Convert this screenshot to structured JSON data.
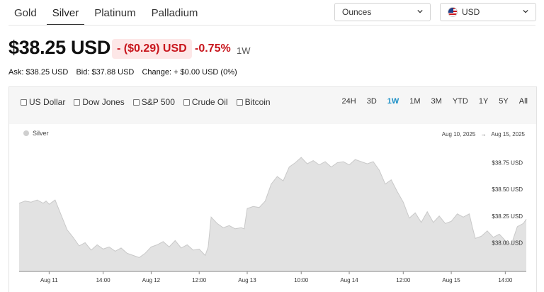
{
  "metal_tabs": [
    {
      "label": "Gold",
      "active": false
    },
    {
      "label": "Silver",
      "active": true
    },
    {
      "label": "Platinum",
      "active": false
    },
    {
      "label": "Palladium",
      "active": false
    }
  ],
  "units_select": {
    "value": "Ounces"
  },
  "currency_select": {
    "value": "USD",
    "flag_icon": "us-flag-icon"
  },
  "price": {
    "value": "$38.25 USD",
    "change": "- ($0.29) USD",
    "change_pct": "-0.75%",
    "period": "1W"
  },
  "quote": {
    "ask": "Ask: $38.25 USD",
    "bid": "Bid: $37.88 USD",
    "change": "Change: + $0.00 USD (0%)"
  },
  "compare": [
    "US Dollar",
    "Dow Jones",
    "S&P 500",
    "Crude Oil",
    "Bitcoin"
  ],
  "ranges": [
    {
      "label": "24H",
      "active": false
    },
    {
      "label": "3D",
      "active": false
    },
    {
      "label": "1W",
      "active": true
    },
    {
      "label": "1M",
      "active": false
    },
    {
      "label": "3M",
      "active": false
    },
    {
      "label": "YTD",
      "active": false
    },
    {
      "label": "1Y",
      "active": false
    },
    {
      "label": "5Y",
      "active": false
    },
    {
      "label": "All",
      "active": false
    }
  ],
  "chart_legend": "Silver",
  "date_range": {
    "from": "Aug 10, 2025",
    "arrow": "→",
    "to": "Aug 15, 2025"
  },
  "colors": {
    "negative": "#c8161d",
    "active_range": "#1a8fc6",
    "area_fill": "#e2e2e2",
    "line": "#c9c9c9"
  },
  "chart_data": {
    "type": "area",
    "series": [
      {
        "name": "Silver",
        "points": [
          [
            0,
            38.37
          ],
          [
            2,
            38.39
          ],
          [
            4,
            38.38
          ],
          [
            6,
            38.4
          ],
          [
            8,
            38.37
          ],
          [
            9,
            38.39
          ],
          [
            10,
            38.36
          ],
          [
            12,
            38.4
          ],
          [
            14,
            38.26
          ],
          [
            16,
            38.12
          ],
          [
            18,
            38.05
          ],
          [
            20,
            37.97
          ],
          [
            22,
            38.0
          ],
          [
            24,
            37.93
          ],
          [
            26,
            37.98
          ],
          [
            28,
            37.94
          ],
          [
            30,
            37.96
          ],
          [
            32,
            37.92
          ],
          [
            34,
            37.95
          ],
          [
            36,
            37.9
          ],
          [
            38,
            37.88
          ],
          [
            40,
            37.86
          ],
          [
            42,
            37.9
          ],
          [
            44,
            37.96
          ],
          [
            46,
            37.98
          ],
          [
            48,
            38.01
          ],
          [
            50,
            37.96
          ],
          [
            52,
            38.02
          ],
          [
            54,
            37.95
          ],
          [
            56,
            37.98
          ],
          [
            58,
            37.93
          ],
          [
            60,
            37.94
          ],
          [
            62,
            37.88
          ],
          [
            63,
            37.96
          ],
          [
            64,
            38.24
          ],
          [
            66,
            38.18
          ],
          [
            68,
            38.14
          ],
          [
            70,
            38.16
          ],
          [
            72,
            38.13
          ],
          [
            74,
            38.14
          ],
          [
            75,
            38.13
          ],
          [
            76,
            38.32
          ],
          [
            78,
            38.34
          ],
          [
            80,
            38.33
          ],
          [
            82,
            38.39
          ],
          [
            84,
            38.55
          ],
          [
            86,
            38.62
          ],
          [
            88,
            38.58
          ],
          [
            90,
            38.71
          ],
          [
            92,
            38.75
          ],
          [
            94,
            38.8
          ],
          [
            96,
            38.74
          ],
          [
            98,
            38.77
          ],
          [
            100,
            38.73
          ],
          [
            102,
            38.76
          ],
          [
            104,
            38.71
          ],
          [
            106,
            38.75
          ],
          [
            108,
            38.76
          ],
          [
            110,
            38.73
          ],
          [
            112,
            38.78
          ],
          [
            114,
            38.76
          ],
          [
            116,
            38.74
          ],
          [
            118,
            38.76
          ],
          [
            120,
            38.68
          ],
          [
            122,
            38.55
          ],
          [
            124,
            38.59
          ],
          [
            126,
            38.48
          ],
          [
            128,
            38.38
          ],
          [
            130,
            38.23
          ],
          [
            132,
            38.28
          ],
          [
            134,
            38.19
          ],
          [
            136,
            38.29
          ],
          [
            138,
            38.19
          ],
          [
            140,
            38.25
          ],
          [
            142,
            38.18
          ],
          [
            144,
            38.2
          ],
          [
            146,
            38.27
          ],
          [
            148,
            38.24
          ],
          [
            150,
            38.27
          ],
          [
            151,
            38.15
          ],
          [
            152,
            38.04
          ],
          [
            154,
            38.06
          ],
          [
            156,
            38.11
          ],
          [
            158,
            38.05
          ],
          [
            160,
            38.08
          ],
          [
            162,
            38.02
          ],
          [
            164,
            37.98
          ],
          [
            166,
            38.15
          ],
          [
            168,
            38.18
          ],
          [
            169,
            38.22
          ]
        ]
      }
    ],
    "y_ticks": [
      {
        "value": 38.0,
        "label": "$38.00 USD"
      },
      {
        "value": 38.25,
        "label": "$38.25 USD"
      },
      {
        "value": 38.5,
        "label": "$38.50 USD"
      },
      {
        "value": 38.75,
        "label": "$38.75 USD"
      }
    ],
    "x_ticks": [
      {
        "hour": 10,
        "label": "Aug 11"
      },
      {
        "hour": 28,
        "label": "14:00"
      },
      {
        "hour": 44,
        "label": "Aug 12"
      },
      {
        "hour": 60,
        "label": "12:00"
      },
      {
        "hour": 76,
        "label": "Aug 13"
      },
      {
        "hour": 94,
        "label": "10:00"
      },
      {
        "hour": 110,
        "label": "Aug 14"
      },
      {
        "hour": 128,
        "label": "12:00"
      },
      {
        "hour": 144,
        "label": "Aug 15"
      },
      {
        "hour": 162,
        "label": "14:00"
      }
    ],
    "x_range": [
      0,
      169
    ],
    "ylim": [
      37.73,
      38.98
    ]
  }
}
